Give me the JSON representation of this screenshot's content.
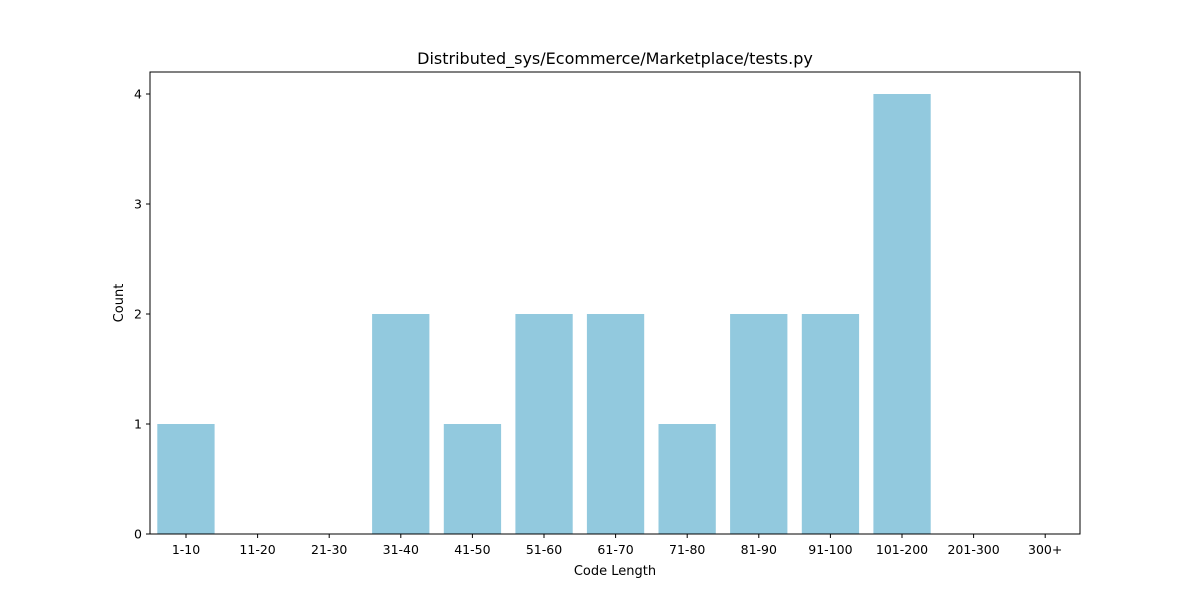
{
  "chart_data": {
    "type": "bar",
    "title": "Distributed_sys/Ecommerce/Marketplace/tests.py",
    "xlabel": "Code Length",
    "ylabel": "Count",
    "categories": [
      "1-10",
      "11-20",
      "21-30",
      "31-40",
      "41-50",
      "51-60",
      "61-70",
      "71-80",
      "81-90",
      "91-100",
      "101-200",
      "201-300",
      "300+"
    ],
    "values": [
      1,
      0,
      0,
      2,
      1,
      2,
      2,
      1,
      2,
      2,
      4,
      0,
      0
    ],
    "ylim": [
      0,
      4.2
    ],
    "yticks": [
      0,
      1,
      2,
      3,
      4
    ],
    "bar_color": "#92c9de",
    "grid": false,
    "legend": false
  }
}
